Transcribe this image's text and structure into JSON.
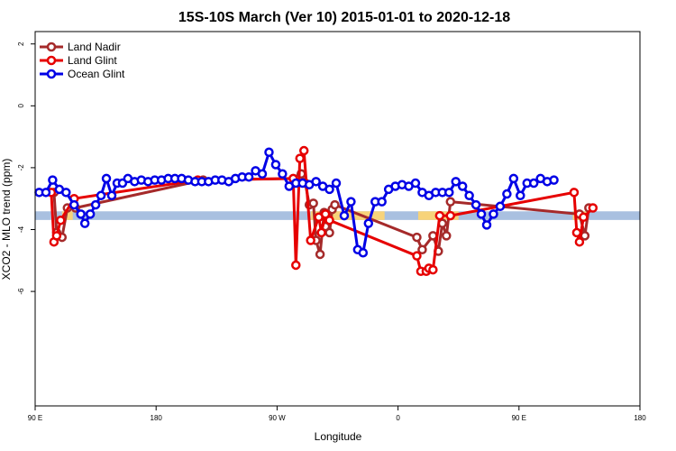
{
  "chart_data": {
    "type": "line",
    "title": "15S-10S March (Ver 10)   2015-01-01 to 2020-12-18",
    "xlabel": "Longitude",
    "ylabel": "XCO2 - MLO trend (ppm)",
    "xlim": [
      90,
      540
    ],
    "ylim": [
      -9.7,
      2.4
    ],
    "x_ticks": [
      {
        "value": 90,
        "label": "90 E"
      },
      {
        "value": 180,
        "label": "180"
      },
      {
        "value": 270,
        "label": "90 W"
      },
      {
        "value": 360,
        "label": "0"
      },
      {
        "value": 450,
        "label": "90 E"
      },
      {
        "value": 540,
        "label": "180"
      }
    ],
    "y_ticks": [
      {
        "value": 2,
        "label": "2"
      },
      {
        "value": 0,
        "label": "0"
      },
      {
        "value": -2,
        "label": "-2"
      },
      {
        "value": -4,
        "label": "-4"
      },
      {
        "value": -6,
        "label": "-6"
      }
    ],
    "bands": [
      {
        "x1": 90,
        "x2": 540,
        "y": -3.55,
        "height": 0.28,
        "color": "#a9c0e0"
      },
      {
        "x1": 110,
        "x2": 118,
        "y": -3.55,
        "height": 0.28,
        "color": "#f7d37a"
      },
      {
        "x1": 295,
        "x2": 350,
        "y": -3.55,
        "height": 0.28,
        "color": "#f7d37a"
      },
      {
        "x1": 375,
        "x2": 405,
        "y": -3.55,
        "height": 0.28,
        "color": "#f7d37a"
      },
      {
        "x1": 490,
        "x2": 500,
        "y": -3.55,
        "height": 0.28,
        "color": "#f7d37a"
      }
    ],
    "legend_position": "top-left",
    "series": [
      {
        "name": "Land Nadir",
        "color": "#a52a2a",
        "points": [
          [
            104,
            -2.8
          ],
          [
            106,
            -4.1
          ],
          [
            110,
            -4.25
          ],
          [
            114,
            -3.3
          ],
          [
            120,
            -3.3
          ],
          [
            215,
            -2.4
          ],
          [
            286,
            -2.35
          ],
          [
            288,
            -2.2
          ],
          [
            291,
            -2.5
          ],
          [
            294,
            -3.2
          ],
          [
            297,
            -3.15
          ],
          [
            299,
            -4.35
          ],
          [
            302,
            -4.8
          ],
          [
            305,
            -3.45
          ],
          [
            306,
            -3.9
          ],
          [
            308,
            -3.6
          ],
          [
            309,
            -4.1
          ],
          [
            311,
            -3.35
          ],
          [
            313,
            -3.2
          ],
          [
            374,
            -4.25
          ],
          [
            378,
            -4.65
          ],
          [
            386,
            -4.2
          ],
          [
            390,
            -4.7
          ],
          [
            393,
            -3.8
          ],
          [
            396,
            -4.2
          ],
          [
            399,
            -3.1
          ],
          [
            495,
            -3.5
          ],
          [
            499,
            -4.2
          ],
          [
            502,
            -3.3
          ]
        ]
      },
      {
        "name": "Land Glint",
        "color": "#e60000",
        "points": [
          [
            102,
            -2.8
          ],
          [
            104,
            -4.4
          ],
          [
            106,
            -4.2
          ],
          [
            109,
            -3.7
          ],
          [
            119,
            -3.0
          ],
          [
            211,
            -2.4
          ],
          [
            282,
            -2.35
          ],
          [
            284,
            -5.15
          ],
          [
            287,
            -1.7
          ],
          [
            290,
            -1.45
          ],
          [
            295,
            -4.35
          ],
          [
            301,
            -3.6
          ],
          [
            303,
            -4.1
          ],
          [
            306,
            -3.5
          ],
          [
            309,
            -3.7
          ],
          [
            374,
            -4.85
          ],
          [
            377,
            -5.35
          ],
          [
            381,
            -5.35
          ],
          [
            383,
            -5.25
          ],
          [
            386,
            -5.3
          ],
          [
            391,
            -3.55
          ],
          [
            399,
            -3.55
          ],
          [
            491,
            -2.8
          ],
          [
            493,
            -4.1
          ],
          [
            495,
            -4.4
          ],
          [
            498,
            -3.6
          ],
          [
            505,
            -3.3
          ]
        ]
      },
      {
        "name": "Ocean Glint",
        "color": "#0000e6",
        "points": [
          [
            93,
            -2.8
          ],
          [
            98,
            -2.8
          ],
          [
            103,
            -2.4
          ],
          [
            108,
            -2.7
          ],
          [
            113,
            -2.8
          ],
          [
            119,
            -3.2
          ],
          [
            124,
            -3.5
          ],
          [
            127,
            -3.8
          ],
          [
            131,
            -3.5
          ],
          [
            135,
            -3.2
          ],
          [
            139,
            -2.9
          ],
          [
            143,
            -2.35
          ],
          [
            147,
            -2.9
          ],
          [
            151,
            -2.5
          ],
          [
            155,
            -2.5
          ],
          [
            159,
            -2.35
          ],
          [
            164,
            -2.45
          ],
          [
            169,
            -2.4
          ],
          [
            174,
            -2.45
          ],
          [
            179,
            -2.4
          ],
          [
            184,
            -2.4
          ],
          [
            189,
            -2.35
          ],
          [
            194,
            -2.35
          ],
          [
            199,
            -2.35
          ],
          [
            204,
            -2.4
          ],
          [
            209,
            -2.45
          ],
          [
            214,
            -2.45
          ],
          [
            219,
            -2.45
          ],
          [
            224,
            -2.4
          ],
          [
            229,
            -2.4
          ],
          [
            234,
            -2.45
          ],
          [
            239,
            -2.35
          ],
          [
            244,
            -2.3
          ],
          [
            249,
            -2.3
          ],
          [
            254,
            -2.1
          ],
          [
            259,
            -2.2
          ],
          [
            264,
            -1.5
          ],
          [
            269,
            -1.9
          ],
          [
            274,
            -2.2
          ],
          [
            279,
            -2.6
          ],
          [
            284,
            -2.5
          ],
          [
            289,
            -2.5
          ],
          [
            294,
            -2.55
          ],
          [
            299,
            -2.45
          ],
          [
            304,
            -2.6
          ],
          [
            309,
            -2.7
          ],
          [
            314,
            -2.5
          ],
          [
            320,
            -3.55
          ],
          [
            325,
            -3.1
          ],
          [
            330,
            -4.65
          ],
          [
            334,
            -4.75
          ],
          [
            338,
            -3.8
          ],
          [
            343,
            -3.1
          ],
          [
            348,
            -3.1
          ],
          [
            353,
            -2.7
          ],
          [
            358,
            -2.6
          ],
          [
            363,
            -2.55
          ],
          [
            368,
            -2.6
          ],
          [
            373,
            -2.5
          ],
          [
            378,
            -2.8
          ],
          [
            383,
            -2.9
          ],
          [
            388,
            -2.8
          ],
          [
            393,
            -2.8
          ],
          [
            398,
            -2.8
          ],
          [
            403,
            -2.45
          ],
          [
            408,
            -2.6
          ],
          [
            413,
            -2.9
          ],
          [
            418,
            -3.2
          ],
          [
            422,
            -3.5
          ],
          [
            426,
            -3.85
          ],
          [
            431,
            -3.5
          ],
          [
            436,
            -3.25
          ],
          [
            441,
            -2.85
          ],
          [
            446,
            -2.35
          ],
          [
            451,
            -2.9
          ],
          [
            456,
            -2.5
          ],
          [
            461,
            -2.5
          ],
          [
            466,
            -2.35
          ],
          [
            471,
            -2.45
          ],
          [
            476,
            -2.4
          ]
        ]
      }
    ]
  }
}
